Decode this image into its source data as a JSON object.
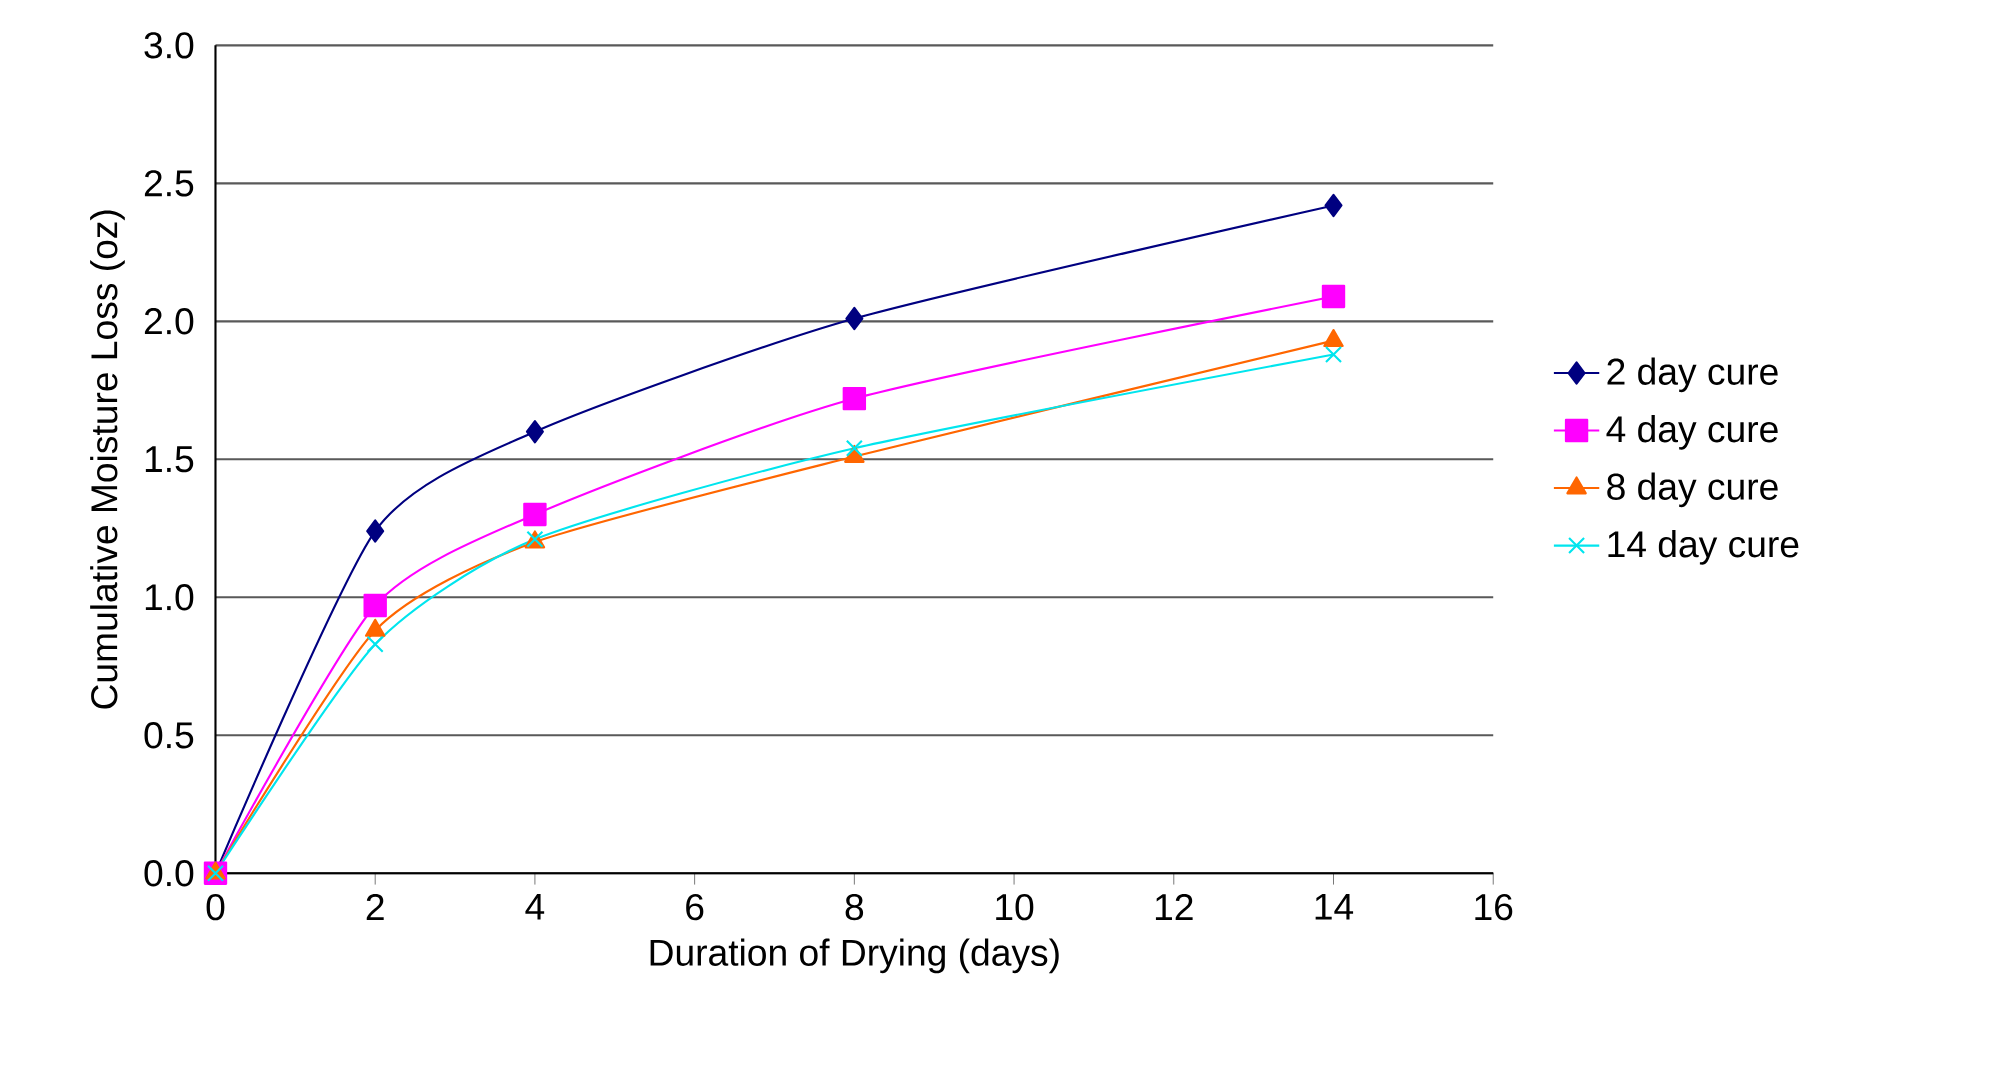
{
  "chart_data": {
    "type": "line",
    "xlabel": "Duration of Drying (days)",
    "ylabel": "Cumulative Moisture Loss (oz)",
    "xlim": [
      0,
      16
    ],
    "xticks": [
      0,
      2,
      4,
      6,
      8,
      10,
      12,
      14,
      16
    ],
    "ylim": [
      0,
      3
    ],
    "yticks": [
      "0.0",
      0.5,
      "1.0",
      1.5,
      "2.0",
      2.5,
      "3.0"
    ],
    "grid": "y",
    "legend": "right",
    "x": [
      0,
      2,
      4,
      8,
      14
    ],
    "series": [
      {
        "name": "2 day cure",
        "color": "#000080",
        "marker": "diamond",
        "values": [
          0,
          1.24,
          1.6,
          2.01,
          2.42
        ]
      },
      {
        "name": "4 day cure",
        "color": "#ff00ff",
        "marker": "square",
        "values": [
          0,
          0.97,
          1.3,
          1.72,
          2.09
        ]
      },
      {
        "name": "8 day cure",
        "color": "#ff6600",
        "marker": "triangle",
        "values": [
          0,
          0.88,
          1.2,
          1.51,
          1.93
        ]
      },
      {
        "name": "14 day cure",
        "color": "#00e5ee",
        "marker": "cross",
        "values": [
          0,
          0.83,
          1.21,
          1.54,
          1.88
        ]
      }
    ]
  }
}
